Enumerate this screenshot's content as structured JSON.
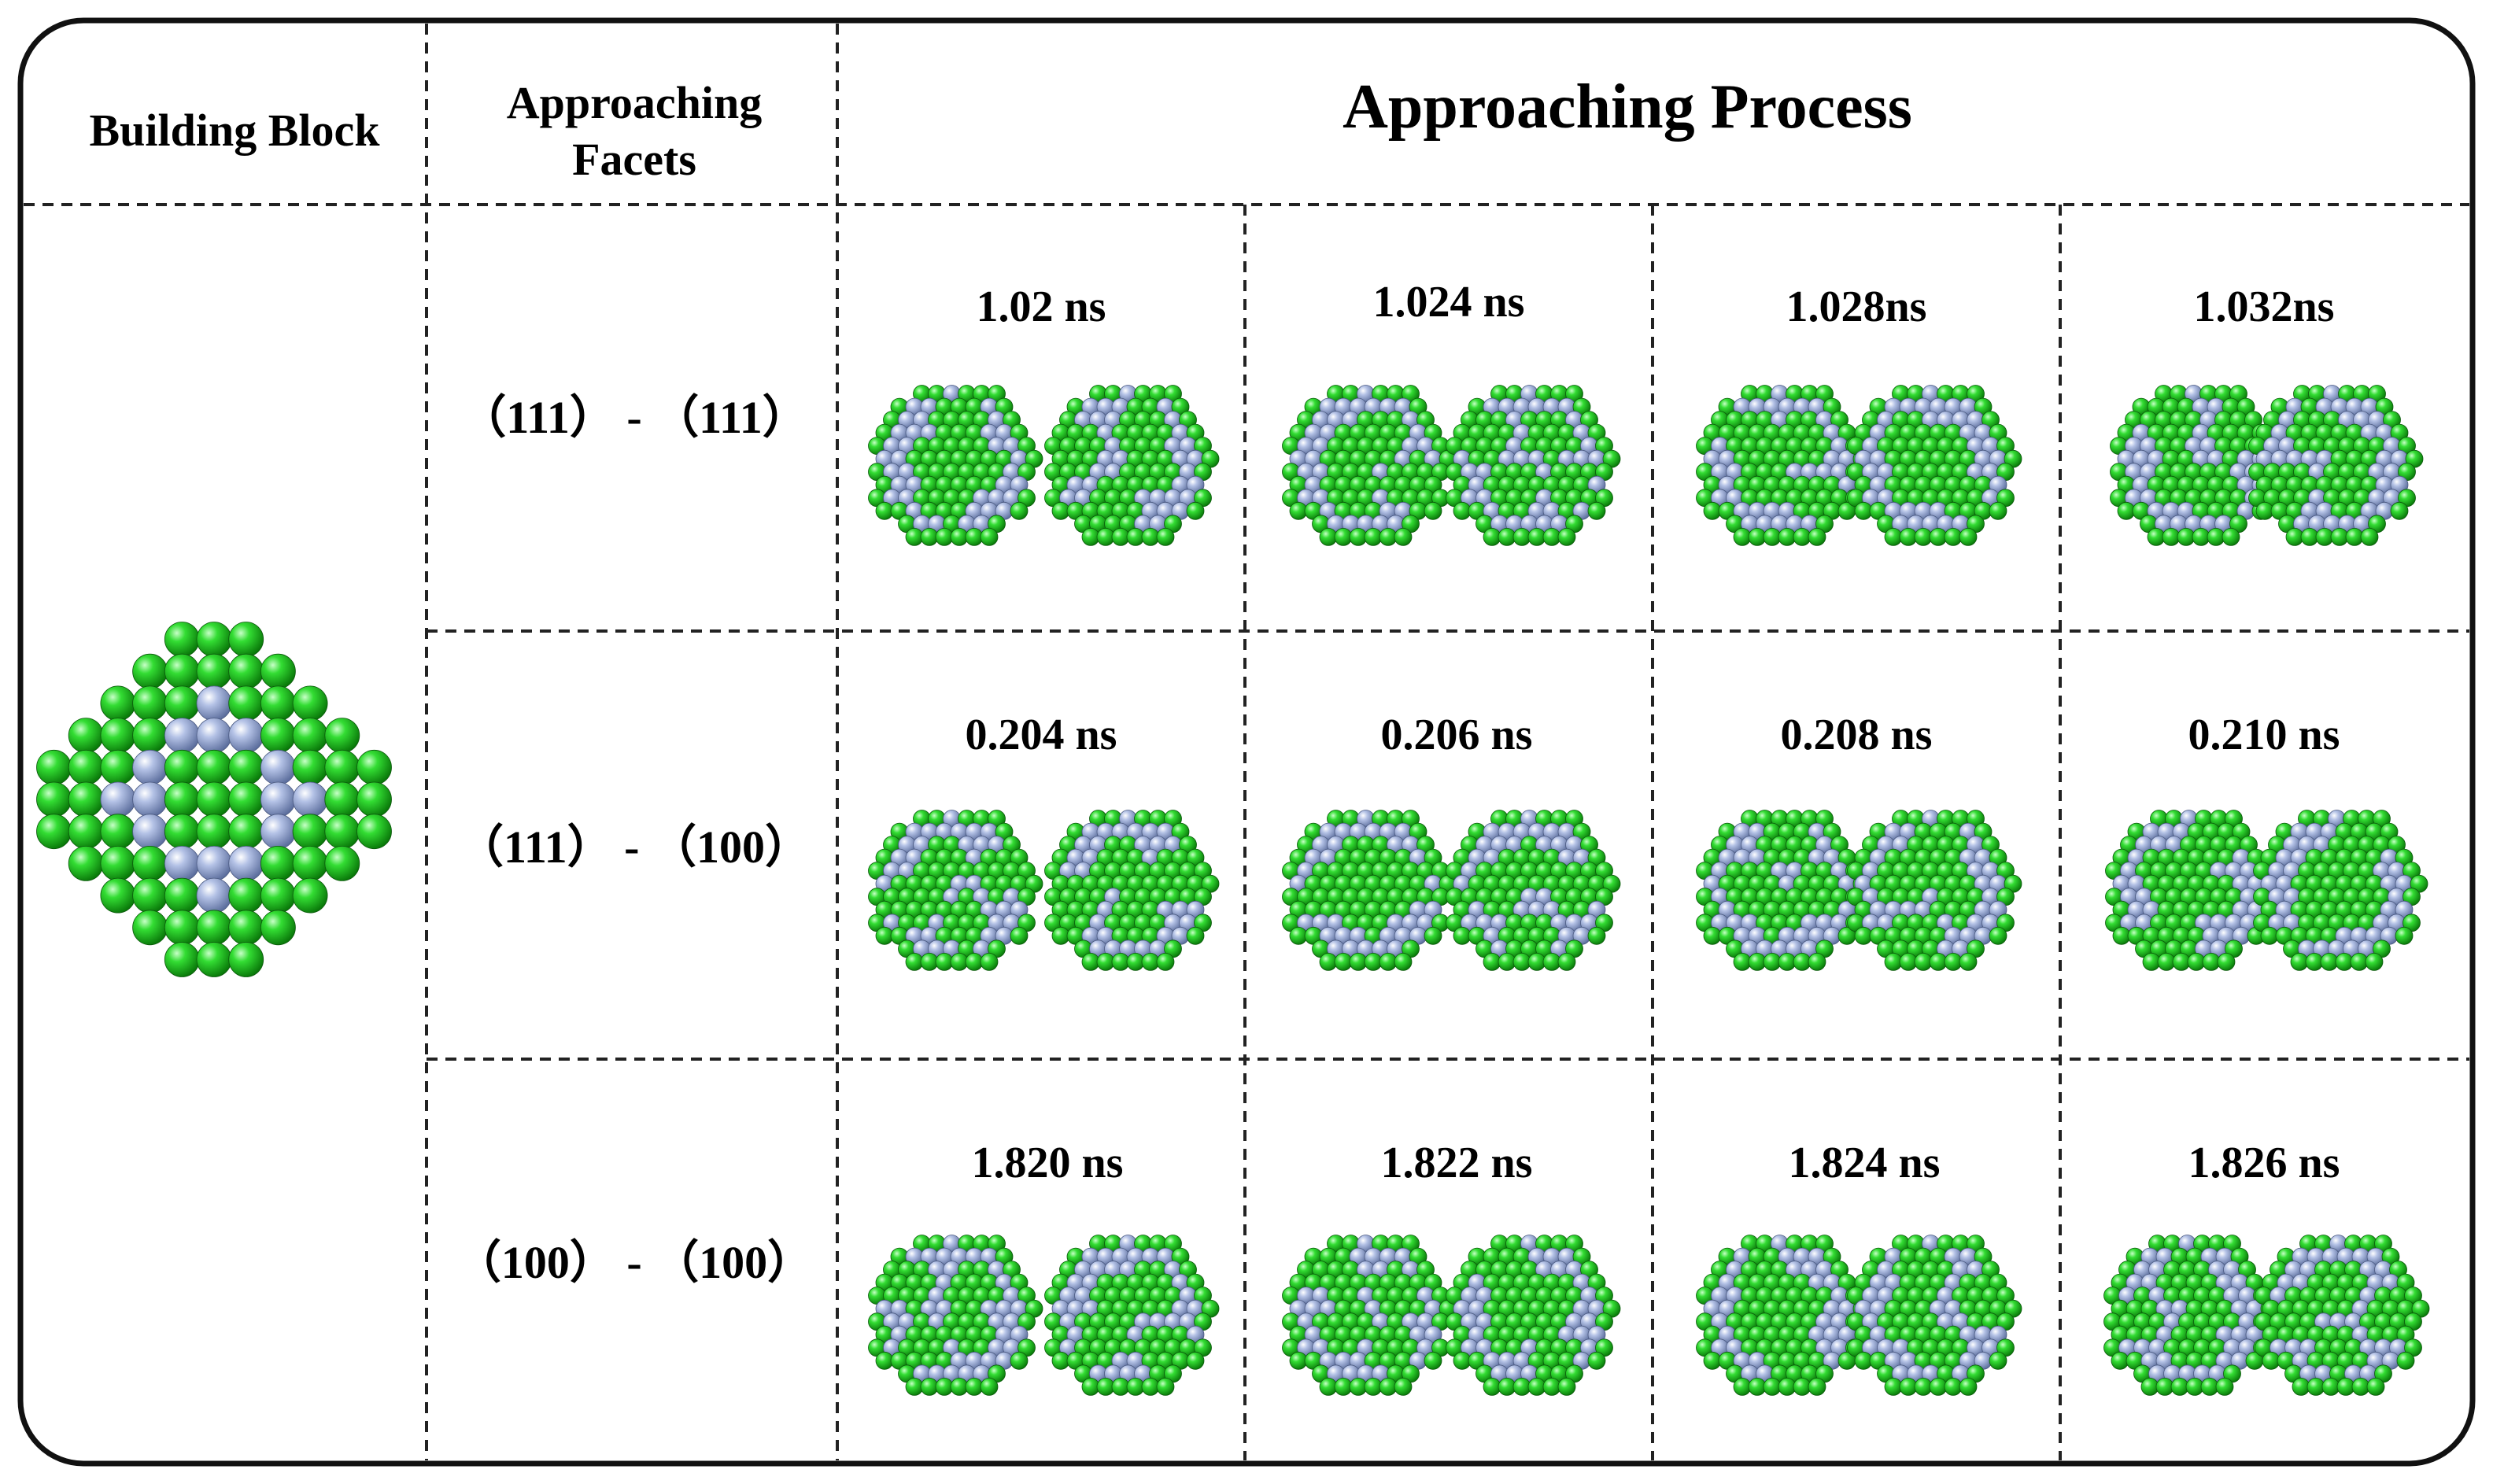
{
  "header": {
    "building_block": "Building Block",
    "approaching_facets_line1": "Approaching",
    "approaching_facets_line2": "Facets",
    "approaching_process": "Approaching Process"
  },
  "rows": [
    {
      "facets": "（111） - （111）",
      "times": [
        "1.02 ns",
        "1.024 ns",
        "1.028ns",
        "1.032ns"
      ]
    },
    {
      "facets": "（111） - （100）",
      "times": [
        "0.204 ns",
        "0.206 ns",
        "0.208 ns",
        "0.210 ns"
      ]
    },
    {
      "facets": "（100） - （100）",
      "times": [
        "1.820 ns",
        "1.822 ns",
        "1.824 ns",
        "1.826 ns"
      ]
    }
  ],
  "colors": {
    "atom_green": "#22cc22",
    "atom_blue": "#a8b8e0",
    "border": "#111111",
    "divider": "#222222"
  }
}
